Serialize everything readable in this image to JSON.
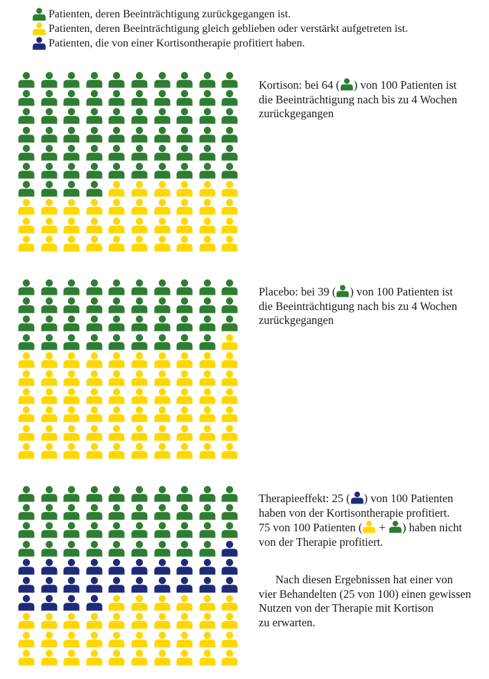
{
  "colors": {
    "improved": "#2e7d32",
    "unchanged": "#ffd700",
    "benefited": "#1f2a7a"
  },
  "legend": [
    {
      "icon": "person-icon-green",
      "color_key": "improved",
      "label": "Patienten, deren Beeinträchtigung zurückgegangen ist."
    },
    {
      "icon": "person-icon-yellow",
      "color_key": "unchanged",
      "label": "Patienten, deren Beeinträchtigung gleich geblieben oder verstärkt aufgetreten ist."
    },
    {
      "icon": "person-icon-blue",
      "color_key": "benefited",
      "label": "Patienten, die von einer Kortisontherapie profitiert haben."
    }
  ],
  "panels": [
    {
      "id": "kortison",
      "counts": {
        "improved": 64,
        "benefited": 0,
        "unchanged": 36
      },
      "caption": {
        "before_icon": "Kortison: bei 64 (",
        "icon_key": "improved",
        "after_icon": ") von 100 Patienten ist",
        "line2": "die Beeinträchtigung nach bis zu 4 Wochen",
        "line3": "zurückgegangen"
      }
    },
    {
      "id": "placebo",
      "counts": {
        "improved": 39,
        "benefited": 0,
        "unchanged": 61
      },
      "caption": {
        "before_icon": "Placebo: bei 39 (",
        "icon_key": "improved",
        "after_icon": ") von 100 Patienten ist",
        "line2": "die Beeinträchtigung nach bis zu 4 Wochen",
        "line3": "zurückgegangen"
      }
    },
    {
      "id": "therapieeffekt",
      "counts": {
        "improved": 39,
        "benefited": 25,
        "unchanged": 36
      },
      "caption": {
        "before_icon": "Therapieeffekt: 25 (",
        "icon_key": "benefited",
        "after_icon": ") von 100 Patienten",
        "line2": "haben von der Kortisontherapie profitiert.",
        "line3_prefix": "75 von 100 Patienten (",
        "line3_plus": " + ",
        "line3_suffix": ") haben nicht",
        "line4": "von der Therapie profitiert."
      }
    }
  ],
  "conclusion": {
    "line1": "Nach diesen Ergebnissen hat einer von",
    "line2": "vier Behandelten (25 von 100) einen gewissen",
    "line3": "Nutzen von der Therapie mit Kortison",
    "line4": "zu erwarten."
  }
}
